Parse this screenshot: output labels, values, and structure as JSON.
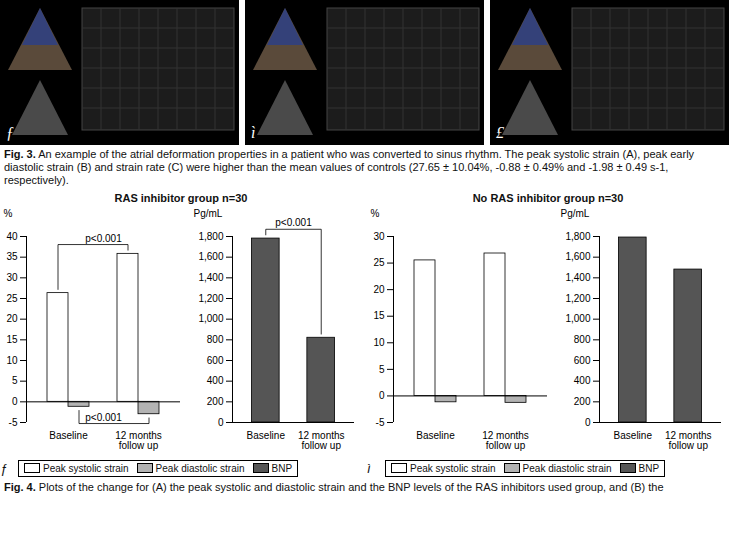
{
  "figure3": {
    "panel_letters": [
      "ƒ",
      "ì",
      "£"
    ],
    "caption_label": "Fig. 3.",
    "caption": "An example of the atrial deformation properties in a patient who was converted to sinus rhythm. The peak systolic strain (A), peak early diastolic strain (B) and strain rate (C) were higher than the mean values of controls (27.65 ± 10.04%, -0.88 ± 0.49% and -1.98 ± 0.49 s-1, respectively)."
  },
  "figure4": {
    "caption_label": "Fig. 4.",
    "caption": "Plots of the change for (A) the peak systolic and diastolic strain and the BNP levels of the RAS inhibitors used group, and (B) the",
    "panels": [
      {
        "letter": "ƒ",
        "title": "RAS inhibitor group  n=30",
        "legend": [
          {
            "name": "Peak systolic strain",
            "color": "#ffffff"
          },
          {
            "name": "Peak diastolic strain",
            "color": "#b3b3b3"
          },
          {
            "name": "BNP",
            "color": "#555555"
          }
        ]
      },
      {
        "letter": "ì",
        "title": "No RAS inhibitor group  n=30",
        "legend": [
          {
            "name": "Peak systolic strain",
            "color": "#ffffff"
          },
          {
            "name": "Peak diastolic strain",
            "color": "#b3b3b3"
          },
          {
            "name": "BNP",
            "color": "#555555"
          }
        ]
      }
    ]
  },
  "chart_data": [
    {
      "type": "bar",
      "y_label": "%",
      "categories": [
        "Baseline",
        "12 months follow up"
      ],
      "series": [
        {
          "name": "Peak systolic strain",
          "color": "#ffffff",
          "values": [
            26.3,
            35.8
          ]
        },
        {
          "name": "Peak diastolic strain",
          "color": "#b3b3b3",
          "values": [
            -1.2,
            -3.0
          ]
        }
      ],
      "ylim": [
        -5,
        40
      ],
      "yticks": [
        -5,
        0,
        5,
        10,
        15,
        20,
        25,
        30,
        35,
        40
      ],
      "annotations": [
        {
          "text": "p<0.001",
          "series": "Peak systolic strain"
        },
        {
          "text": "p<0.001",
          "series": "Peak diastolic strain"
        }
      ],
      "legend": "bottom",
      "grid": false
    },
    {
      "type": "bar",
      "y_label": "Pg/mL",
      "categories": [
        "Baseline",
        "12 months follow up"
      ],
      "series": [
        {
          "name": "BNP",
          "color": "#555555",
          "values": [
            1780,
            820
          ]
        }
      ],
      "ylim": [
        0,
        1800
      ],
      "yticks": [
        0,
        200,
        400,
        600,
        800,
        {
          "value": 1000,
          "label": "1,000"
        },
        {
          "value": 1200,
          "label": "1,200"
        },
        {
          "value": 1400,
          "label": "1,400"
        },
        {
          "value": 1600,
          "label": "1,600"
        },
        {
          "value": 1800,
          "label": "1,800"
        }
      ],
      "annotations": [
        {
          "text": "p<0.001",
          "series": "BNP"
        }
      ],
      "legend": "bottom",
      "grid": false
    },
    {
      "type": "bar",
      "y_label": "%",
      "categories": [
        "Baseline",
        "12 months follow up"
      ],
      "series": [
        {
          "name": "Peak systolic strain",
          "color": "#ffffff",
          "values": [
            25.5,
            26.8
          ]
        },
        {
          "name": "Peak diastolic strain",
          "color": "#b3b3b3",
          "values": [
            -1.2,
            -1.3
          ]
        }
      ],
      "ylim": [
        -5,
        30
      ],
      "yticks": [
        -5,
        0,
        5,
        10,
        15,
        20,
        25,
        30
      ],
      "legend": "bottom",
      "grid": false
    },
    {
      "type": "bar",
      "y_label": "Pg/mL",
      "categories": [
        "Baseline",
        "12 months follow up"
      ],
      "series": [
        {
          "name": "BNP",
          "color": "#555555",
          "values": [
            1790,
            1480
          ]
        }
      ],
      "ylim": [
        0,
        1800
      ],
      "yticks": [
        0,
        200,
        400,
        600,
        800,
        {
          "value": 1000,
          "label": "1,000"
        },
        {
          "value": 1200,
          "label": "1,200"
        },
        {
          "value": 1400,
          "label": "1,400"
        },
        {
          "value": 1600,
          "label": "1,600"
        },
        {
          "value": 1800,
          "label": "1,800"
        }
      ],
      "legend": "bottom",
      "grid": false
    }
  ]
}
